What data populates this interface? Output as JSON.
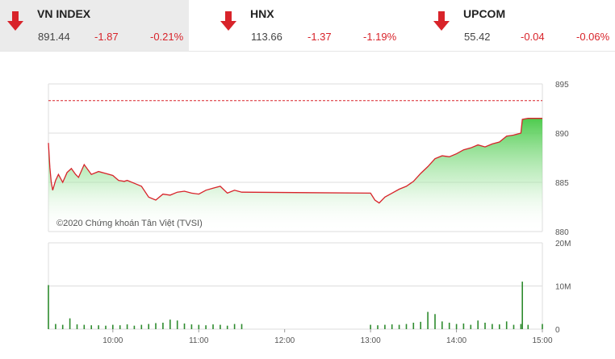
{
  "tickers": [
    {
      "name": "VN INDEX",
      "price": "891.44",
      "change": "-1.87",
      "percent": "-0.21%",
      "direction": "down-arrow-icon",
      "active": true
    },
    {
      "name": "HNX",
      "price": "113.66",
      "change": "-1.37",
      "percent": "-1.19%",
      "direction": "down-arrow-icon",
      "active": false
    },
    {
      "name": "UPCOM",
      "price": "55.42",
      "change": "-0.04",
      "percent": "-0.06%",
      "direction": "down-arrow-icon",
      "active": false
    }
  ],
  "colors": {
    "down": "#d8232a",
    "line": "#d8232a",
    "area": "#44c844",
    "volume": "#2e8b2e",
    "reference": "#d8232a"
  },
  "copyright": "©2020 Chứng khoán Tân Việt (TVSI)",
  "chart_data": [
    {
      "type": "area",
      "title": "",
      "ylim": [
        880,
        895
      ],
      "y_ticks": [
        "895",
        "890",
        "885",
        "880"
      ],
      "x_ticks": [
        "10:00",
        "11:00",
        "12:00",
        "13:00",
        "14:00",
        "15:00"
      ],
      "reference_value": 893.3,
      "x": [
        "09:15",
        "09:16",
        "09:17",
        "09:18",
        "09:20",
        "09:22",
        "09:25",
        "09:28",
        "09:31",
        "09:34",
        "09:36",
        "09:40",
        "09:45",
        "09:50",
        "09:55",
        "10:00",
        "10:04",
        "10:08",
        "10:10",
        "10:15",
        "10:20",
        "10:25",
        "10:30",
        "10:35",
        "10:40",
        "10:45",
        "10:50",
        "10:55",
        "11:00",
        "11:05",
        "11:10",
        "11:15",
        "11:20",
        "11:25",
        "11:30",
        "13:00",
        "13:03",
        "13:06",
        "13:10",
        "13:15",
        "13:20",
        "13:25",
        "13:30",
        "13:35",
        "13:40",
        "13:45",
        "13:50",
        "13:55",
        "14:00",
        "14:05",
        "14:10",
        "14:15",
        "14:20",
        "14:25",
        "14:30",
        "14:35",
        "14:40",
        "14:45",
        "14:46",
        "14:50",
        "15:00"
      ],
      "series": [
        {
          "values": [
            889.0,
            886.5,
            885.0,
            884.2,
            885.2,
            885.8,
            885.0,
            886.0,
            886.4,
            885.8,
            885.5,
            886.8,
            885.8,
            886.1,
            885.9,
            885.7,
            885.2,
            885.1,
            885.2,
            884.9,
            884.6,
            883.5,
            883.2,
            883.8,
            883.7,
            884.0,
            884.1,
            883.9,
            883.8,
            884.2,
            884.4,
            884.6,
            883.9,
            884.2,
            884.0,
            883.9,
            883.2,
            882.9,
            883.5,
            883.9,
            884.3,
            884.6,
            885.1,
            885.9,
            886.6,
            887.4,
            887.7,
            887.6,
            887.9,
            888.3,
            888.5,
            888.8,
            888.6,
            888.9,
            889.1,
            889.7,
            889.8,
            890.0,
            891.4,
            891.5,
            891.5
          ]
        }
      ]
    },
    {
      "type": "bar",
      "title": "",
      "ylim": [
        0,
        20
      ],
      "y_ticks": [
        "20M",
        "10M",
        "0"
      ],
      "x_ticks": [
        "10:00",
        "11:00",
        "12:00",
        "13:00",
        "14:00",
        "15:00"
      ],
      "x": [
        "09:15",
        "09:20",
        "09:25",
        "09:30",
        "09:35",
        "09:40",
        "09:45",
        "09:50",
        "09:55",
        "10:00",
        "10:05",
        "10:10",
        "10:15",
        "10:20",
        "10:25",
        "10:30",
        "10:35",
        "10:40",
        "10:45",
        "10:50",
        "10:55",
        "11:00",
        "11:05",
        "11:10",
        "11:15",
        "11:20",
        "11:25",
        "11:30",
        "13:00",
        "13:05",
        "13:10",
        "13:15",
        "13:20",
        "13:25",
        "13:30",
        "13:35",
        "13:40",
        "13:45",
        "13:50",
        "13:55",
        "14:00",
        "14:05",
        "14:10",
        "14:15",
        "14:20",
        "14:25",
        "14:30",
        "14:35",
        "14:40",
        "14:45",
        "14:46",
        "14:50",
        "15:00"
      ],
      "series": [
        {
          "name": "",
          "values": [
            10.2,
            1.2,
            1.0,
            2.5,
            1.1,
            1.0,
            0.9,
            0.9,
            0.8,
            1.0,
            0.9,
            1.1,
            0.8,
            1.0,
            1.2,
            1.4,
            1.5,
            2.2,
            2.0,
            1.3,
            1.1,
            1.0,
            0.9,
            1.1,
            1.0,
            0.8,
            1.2,
            1.2,
            1.0,
            0.9,
            1.0,
            1.1,
            1.0,
            1.2,
            1.5,
            1.7,
            4.0,
            3.5,
            1.8,
            1.5,
            1.2,
            1.3,
            1.0,
            2.0,
            1.5,
            1.2,
            1.1,
            1.8,
            1.0,
            1.2,
            11.0,
            1.0,
            1.2
          ]
        }
      ]
    }
  ]
}
